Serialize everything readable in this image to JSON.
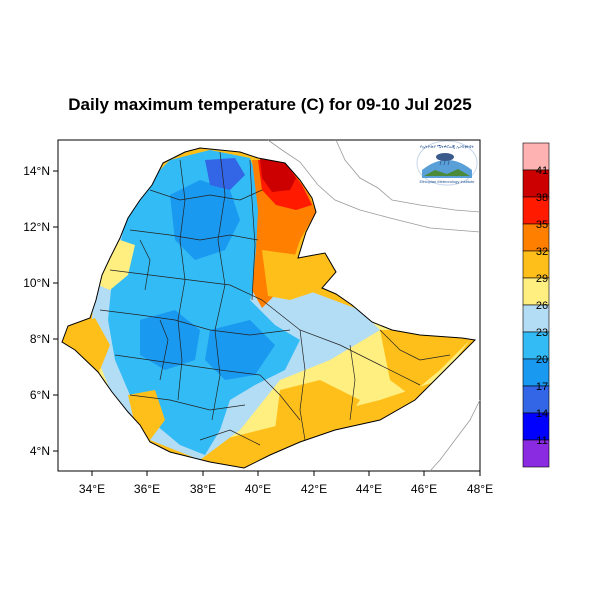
{
  "title": "Daily maximum temperature (C) for 09-10 Jul 2025",
  "map": {
    "x_ticks": [
      "34°E",
      "36°E",
      "38°E",
      "40°E",
      "42°E",
      "44°E",
      "46°E",
      "48°E"
    ],
    "y_ticks": [
      "14°N",
      "12°N",
      "10°N",
      "8°N",
      "6°N",
      "4°N"
    ],
    "lon_range": [
      33.0,
      48.2
    ],
    "lat_range": [
      3.2,
      15.0
    ]
  },
  "colorbar": {
    "labels": [
      "41",
      "38",
      "35",
      "32",
      "29",
      "26",
      "23",
      "20",
      "17",
      "14",
      "11"
    ],
    "colors": [
      "#ffb2b2",
      "#cc0000",
      "#ff1a00",
      "#ff8000",
      "#ffbf1a",
      "#ffee80",
      "#b3dcf5",
      "#33bbf5",
      "#1a99f0",
      "#3366e6",
      "#0000ff",
      "#8a2be2"
    ]
  },
  "logo": {
    "top_text": "የኢትዮጵያ ሜትዎሮሎጂ ኢንስቲትዩት",
    "bottom_text": "Ethiopian Meteorology Institute"
  },
  "colors": {
    "cool": "#3aa0ee",
    "cool_dark": "#1f7ad9",
    "mild": "#a9d6f2",
    "warm_yellow": "#ffee80",
    "warm_orange": "#ffbf1a",
    "hot_orange": "#ff8000",
    "hot_red": "#ff1a00",
    "very_hot": "#cc0000"
  }
}
